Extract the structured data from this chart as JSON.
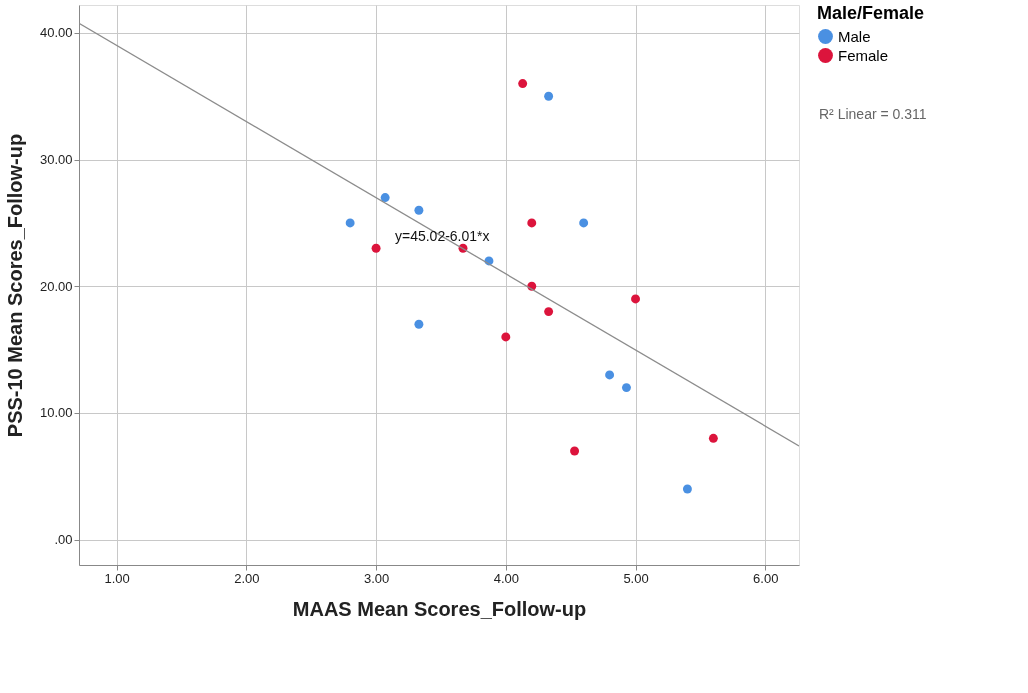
{
  "chart_data": {
    "type": "scatter",
    "xlabel": "MAAS Mean Scores_Follow-up",
    "ylabel": "PSS-10 Mean Scores_Follow-up",
    "legend_title": "Male/Female",
    "xlim": [
      0.71,
      6.26
    ],
    "ylim": [
      -2.0,
      42.2
    ],
    "xticks": [
      {
        "value": 1,
        "label": "1.00"
      },
      {
        "value": 2,
        "label": "2.00"
      },
      {
        "value": 3,
        "label": "3.00"
      },
      {
        "value": 4,
        "label": "4.00"
      },
      {
        "value": 5,
        "label": "5.00"
      },
      {
        "value": 6,
        "label": "6.00"
      }
    ],
    "yticks": [
      {
        "value": 0,
        "label": ".00"
      },
      {
        "value": 10,
        "label": "10.00"
      },
      {
        "value": 20,
        "label": "20.00"
      },
      {
        "value": 30,
        "label": "30.00"
      },
      {
        "value": 40,
        "label": "40.00"
      }
    ],
    "grid": true,
    "legend": "top right",
    "marker": "circle",
    "series": [
      {
        "name": "Male",
        "color": "#4a90e2",
        "x": [
          2.8,
          3.07,
          3.33,
          3.87,
          3.33,
          4.33,
          4.6,
          4.8,
          4.93,
          5.4
        ],
        "values": [
          25,
          27,
          26,
          22,
          17,
          35,
          25,
          13,
          12,
          4
        ]
      },
      {
        "name": "Female",
        "color": "#dc143c",
        "x": [
          3.0,
          3.67,
          4.13,
          4.2,
          4.2,
          4.33,
          4.0,
          4.53,
          5.0,
          5.6
        ],
        "values": [
          23,
          23,
          36,
          25,
          20,
          18,
          16,
          7,
          19,
          8
        ]
      },
      {
        "type": "line",
        "color": "#8c8c8c",
        "x": [
          0.71,
          6.26
        ],
        "values": [
          40.75,
          7.4
        ],
        "line_style": "solid",
        "marker": "none"
      }
    ],
    "annotations": [
      {
        "text": "y=45.02-6.01*x",
        "x": 3.51,
        "y": 23.9
      },
      "R² Linear = 0.311"
    ]
  }
}
